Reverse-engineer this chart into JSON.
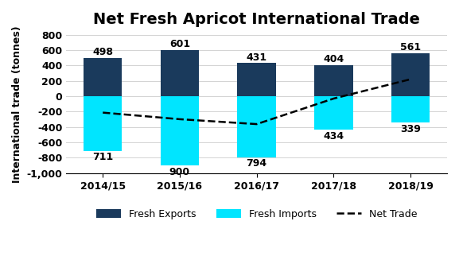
{
  "title": "Net Fresh Apricot International Trade",
  "categories": [
    "2014/15",
    "2015/16",
    "2016/17",
    "2017/18",
    "2018/19"
  ],
  "exports": [
    498,
    601,
    431,
    404,
    561
  ],
  "imports": [
    -711,
    -900,
    -794,
    -434,
    -339
  ],
  "import_labels": [
    711,
    900,
    794,
    434,
    339
  ],
  "net_trade": [
    -213,
    -299,
    -363,
    -30,
    222
  ],
  "export_color": "#1a3a5c",
  "import_color": "#00e5ff",
  "net_line_color": "#000000",
  "ylabel": "International trade (tonnes)",
  "ylim": [
    -1000,
    800
  ],
  "ytick_values": [
    -1000,
    -800,
    -600,
    -400,
    -200,
    0,
    200,
    400,
    600,
    800
  ],
  "ytick_labels": [
    "-1,000",
    "-800",
    "-600",
    "-400",
    "-200",
    "0",
    "200",
    "400",
    "600",
    "800"
  ],
  "bar_width": 0.5,
  "export_label": "Fresh Exports",
  "import_label": "Fresh Imports",
  "net_label": "Net Trade",
  "title_fontsize": 14,
  "label_fontsize": 9,
  "tick_fontsize": 9,
  "annot_fontsize": 9,
  "background_color": "#ffffff"
}
